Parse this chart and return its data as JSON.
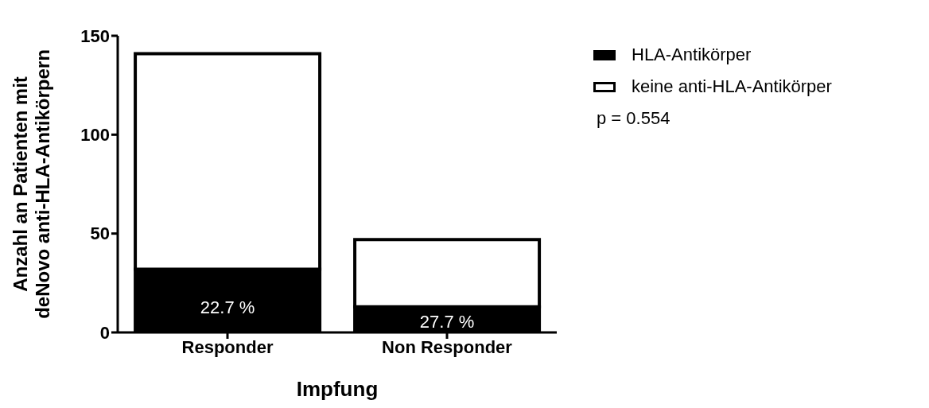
{
  "chart_data": {
    "type": "bar",
    "stacked": true,
    "xlabel": "Impfung",
    "ylabel": "Anzahl an Patienten mit\ndeNovo anti-HLA-Antikörpern",
    "categories": [
      "Responder",
      "Non Responder"
    ],
    "series": [
      {
        "name": "HLA-Antikörper",
        "color": "#000000",
        "values": [
          32,
          13
        ]
      },
      {
        "name": "keine anti-HLA-Antikörper",
        "color": "#ffffff",
        "values": [
          109,
          34
        ]
      }
    ],
    "ylim": [
      0,
      150
    ],
    "yticks": [
      0,
      50,
      100,
      150
    ],
    "grid": false,
    "legend": "top right",
    "annotations": [
      "p = 0.554",
      "22.7 %",
      "27.7 %"
    ]
  }
}
